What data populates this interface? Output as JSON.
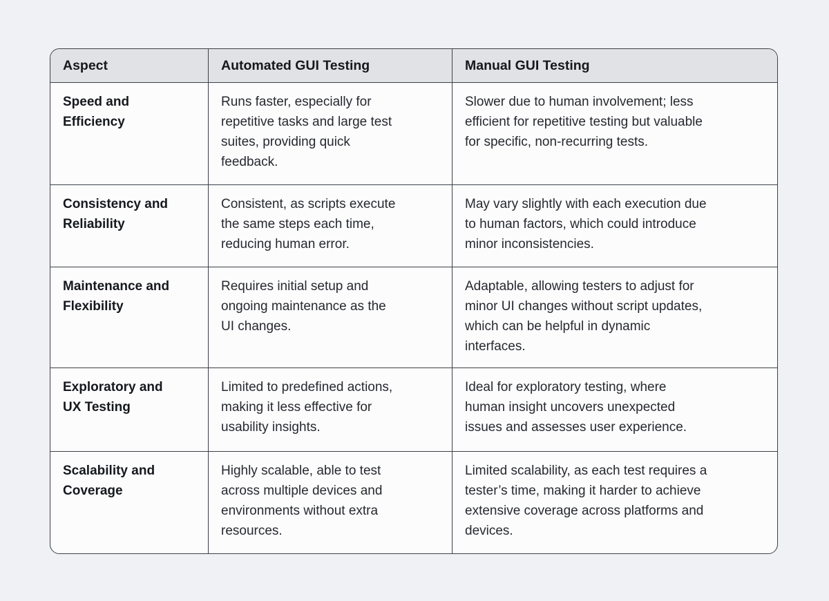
{
  "table": {
    "columns": [
      "Aspect",
      "Automated GUI Testing",
      "Manual GUI Testing"
    ],
    "rows": [
      {
        "aspect": "Speed and\nEfficiency",
        "automated": "Runs faster, especially for\nrepetitive tasks and large test\nsuites, providing quick\nfeedback.",
        "manual": "Slower due to human involvement; less\nefficient for repetitive testing but valuable\nfor specific, non-recurring tests."
      },
      {
        "aspect": "Consistency and\nReliability",
        "automated": "Consistent, as scripts execute\nthe same steps each time,\nreducing human error.",
        "manual": "May vary slightly with each execution due\nto human factors, which could introduce\nminor inconsistencies."
      },
      {
        "aspect": "Maintenance and\nFlexibility",
        "automated": "Requires initial setup and\nongoing maintenance as the\nUI changes.",
        "manual": "Adaptable, allowing testers to adjust for\nminor UI changes without script updates,\nwhich can be helpful in dynamic\ninterfaces."
      },
      {
        "aspect": "Exploratory and\nUX Testing",
        "automated": "Limited to predefined actions,\nmaking it less effective for\nusability insights.",
        "manual": "Ideal for exploratory testing, where\nhuman insight uncovers unexpected\nissues and assesses user experience."
      },
      {
        "aspect": "Scalability and\nCoverage",
        "automated": "Highly scalable, able to test\nacross multiple devices and\nenvironments without extra\nresources.",
        "manual": "Limited scalability, as each test requires a\ntester’s time, making it harder to achieve\nextensive coverage across platforms and\ndevices."
      }
    ]
  },
  "colors": {
    "page_background": "#eff1f4",
    "header_background": "#e0e2e5",
    "cell_background": "#fcfcfd",
    "border": "#3b3f46",
    "heading_text": "#15181c",
    "body_text": "#26292e"
  }
}
